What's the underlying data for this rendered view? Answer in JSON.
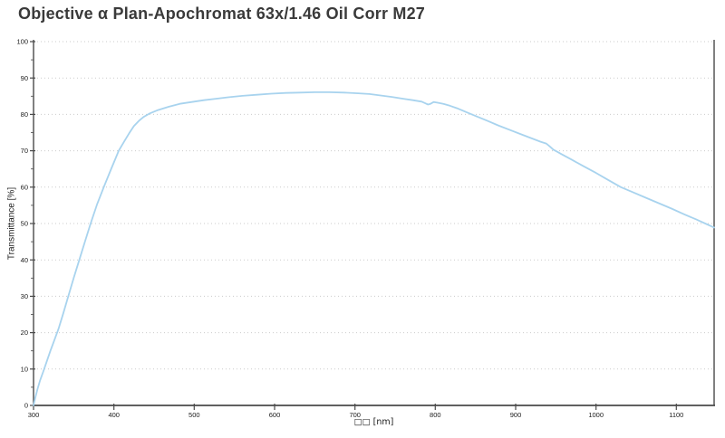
{
  "page": {
    "background": "#ffffff"
  },
  "chart_data": {
    "type": "line",
    "title": "Objective α Plan-Apochromat 63x/1.46 Oil Corr M27",
    "xlabel": "□□ [nm]",
    "ylabel": "Transmittance [%]",
    "xlim": [
      300,
      1147
    ],
    "ylim": [
      0,
      100
    ],
    "x_ticks": [
      300,
      400,
      500,
      600,
      700,
      800,
      900,
      1000,
      1100
    ],
    "y_ticks": [
      0,
      10,
      20,
      30,
      40,
      50,
      60,
      70,
      80,
      90,
      100
    ],
    "y_minor_tick_step": 5,
    "grid": "horizontal-dotted",
    "legend": "none",
    "colors": {
      "axis": "#4a4a4a",
      "grid": "#cbcbcb",
      "tick_text": "#1a1a1a",
      "title_text": "#3a3a3a",
      "curve": "#a8d3ee"
    },
    "series": [
      {
        "name": "Transmittance",
        "color": "#a8d3ee",
        "points": [
          [
            300,
            0
          ],
          [
            302,
            2
          ],
          [
            305,
            4.5
          ],
          [
            308,
            6.8
          ],
          [
            312,
            9.2
          ],
          [
            316,
            11.8
          ],
          [
            321,
            15
          ],
          [
            326,
            18
          ],
          [
            331,
            21
          ],
          [
            337,
            25.3
          ],
          [
            343,
            29.8
          ],
          [
            350,
            35
          ],
          [
            357,
            40
          ],
          [
            364,
            45
          ],
          [
            371,
            50
          ],
          [
            379,
            55.2
          ],
          [
            388,
            60.3
          ],
          [
            397,
            65.2
          ],
          [
            406,
            70
          ],
          [
            413,
            72.6
          ],
          [
            419,
            74.8
          ],
          [
            425,
            76.8
          ],
          [
            431,
            78.2
          ],
          [
            437,
            79.3
          ],
          [
            444,
            80.2
          ],
          [
            455,
            81.2
          ],
          [
            468,
            82.1
          ],
          [
            482,
            82.9
          ],
          [
            497,
            83.4
          ],
          [
            512,
            83.9
          ],
          [
            527,
            84.3
          ],
          [
            542,
            84.7
          ],
          [
            560,
            85.1
          ],
          [
            578,
            85.4
          ],
          [
            596,
            85.7
          ],
          [
            614,
            85.9
          ],
          [
            632,
            86
          ],
          [
            650,
            86.1
          ],
          [
            668,
            86.1
          ],
          [
            686,
            86
          ],
          [
            704,
            85.8
          ],
          [
            718,
            85.6
          ],
          [
            732,
            85.2
          ],
          [
            746,
            84.8
          ],
          [
            760,
            84.3
          ],
          [
            772,
            83.9
          ],
          [
            783,
            83.5
          ],
          [
            788,
            83
          ],
          [
            791,
            82.7
          ],
          [
            794,
            82.9
          ],
          [
            798,
            83.4
          ],
          [
            803,
            83.2
          ],
          [
            810,
            82.9
          ],
          [
            818,
            82.4
          ],
          [
            827,
            81.7
          ],
          [
            840,
            80.5
          ],
          [
            852,
            79.4
          ],
          [
            865,
            78.2
          ],
          [
            878,
            77
          ],
          [
            892,
            75.8
          ],
          [
            906,
            74.6
          ],
          [
            920,
            73.4
          ],
          [
            931,
            72.5
          ],
          [
            938,
            72
          ],
          [
            942,
            71.3
          ],
          [
            947,
            70.3
          ],
          [
            952,
            69.7
          ],
          [
            956,
            69.2
          ],
          [
            970,
            67.5
          ],
          [
            985,
            65.7
          ],
          [
            1000,
            63.9
          ],
          [
            1015,
            62
          ],
          [
            1031,
            60
          ],
          [
            1047,
            58.5
          ],
          [
            1062,
            57.1
          ],
          [
            1078,
            55.6
          ],
          [
            1094,
            54.1
          ],
          [
            1110,
            52.5
          ],
          [
            1125,
            51.1
          ],
          [
            1136,
            50
          ],
          [
            1147,
            48.9
          ]
        ]
      }
    ]
  }
}
